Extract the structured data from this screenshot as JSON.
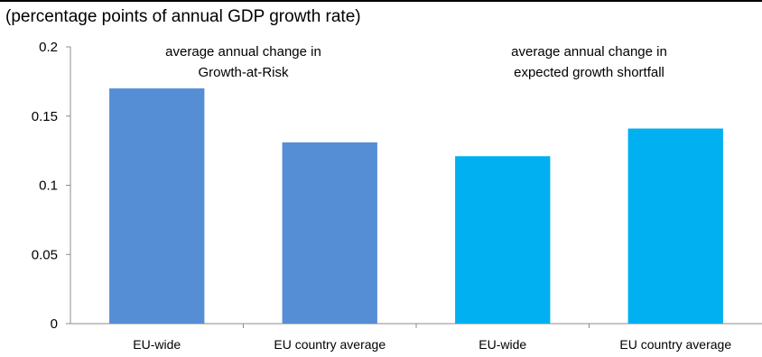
{
  "chart_data": {
    "type": "bar",
    "subtitle": "(percentage points of annual GDP growth rate)",
    "categories": [
      "EU-wide",
      "EU country average",
      "EU-wide",
      "EU country average"
    ],
    "values": [
      0.17,
      0.131,
      0.121,
      0.141
    ],
    "bar_colors": [
      "#558ED5",
      "#558ED5",
      "#00B0F0",
      "#00B0F0"
    ],
    "ylim": [
      0,
      0.2
    ],
    "yticks": [
      "0",
      "0.05",
      "0.1",
      "0.15",
      "0.2"
    ],
    "grid": false,
    "annotations": [
      {
        "lines": [
          "average annual change in",
          "Growth-at-Risk"
        ],
        "group": 0
      },
      {
        "lines": [
          "average annual change in",
          "expected growth shortfall"
        ],
        "group": 1
      }
    ]
  }
}
